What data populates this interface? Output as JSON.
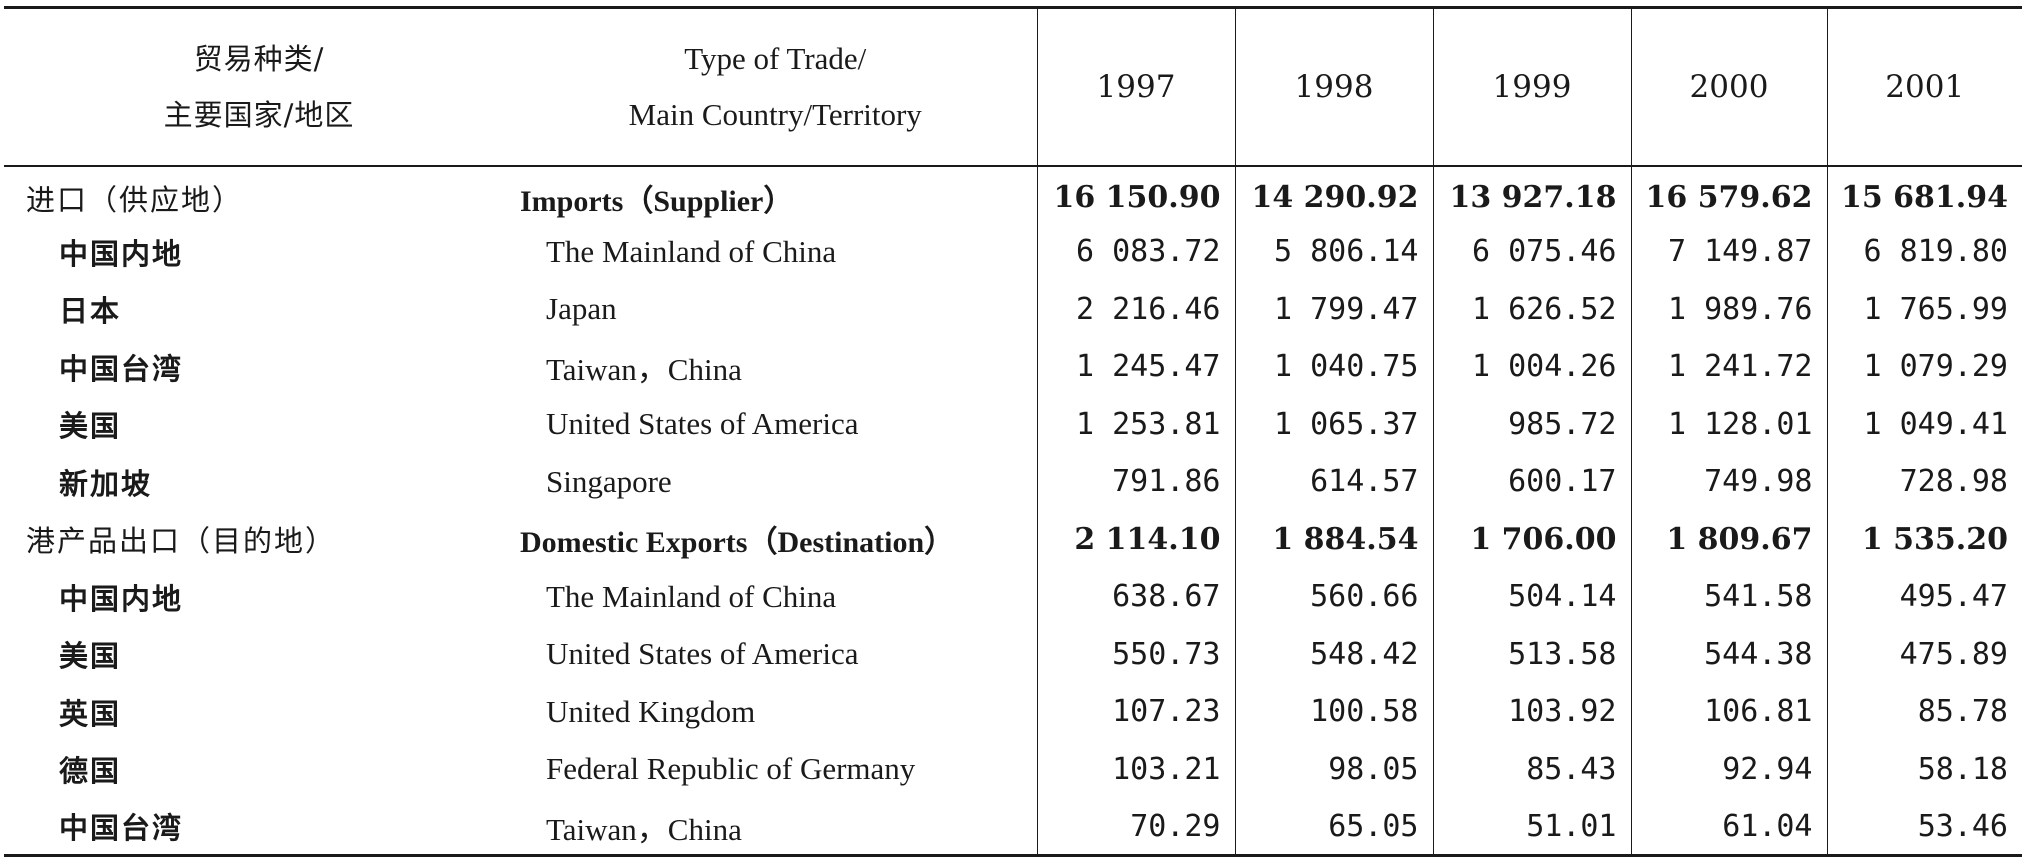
{
  "header": {
    "zh_line1": "贸易种类/",
    "zh_line2": "主要国家/地区",
    "en_line1": "Type of Trade/",
    "en_line2": "Main Country/Territory",
    "years": [
      "1997",
      "1998",
      "1999",
      "2000",
      "2001"
    ]
  },
  "rows": [
    {
      "zh": "进口（供应地）",
      "en": "Imports（Supplier）",
      "values": [
        "16 150.90",
        "14 290.92",
        "13 927.18",
        "16 579.62",
        "15 681.94"
      ]
    },
    {
      "zh": "中国内地",
      "en": "The Mainland of China",
      "values": [
        "6 083.72",
        "5 806.14",
        "6 075.46",
        "7 149.87",
        "6 819.80"
      ]
    },
    {
      "zh": "日本",
      "en": "Japan",
      "values": [
        "2 216.46",
        "1 799.47",
        "1 626.52",
        "1 989.76",
        "1 765.99"
      ]
    },
    {
      "zh": "中国台湾",
      "en": "Taiwan，China",
      "values": [
        "1 245.47",
        "1 040.75",
        "1 004.26",
        "1 241.72",
        "1 079.29"
      ]
    },
    {
      "zh": "美国",
      "en": "United States of America",
      "values": [
        "1 253.81",
        "1 065.37",
        "985.72",
        "1 128.01",
        "1 049.41"
      ]
    },
    {
      "zh": "新加坡",
      "en": "Singapore",
      "values": [
        "791.86",
        "614.57",
        "600.17",
        "749.98",
        "728.98"
      ]
    },
    {
      "zh": "港产品出口（目的地）",
      "en": "Domestic Exports（Destination）",
      "values": [
        "2 114.10",
        "1 884.54",
        "1 706.00",
        "1 809.67",
        "1 535.20"
      ]
    },
    {
      "zh": "中国内地",
      "en": "The Mainland of China",
      "values": [
        "638.67",
        "560.66",
        "504.14",
        "541.58",
        "495.47"
      ]
    },
    {
      "zh": "美国",
      "en": "United States of America",
      "values": [
        "550.73",
        "548.42",
        "513.58",
        "544.38",
        "475.89"
      ]
    },
    {
      "zh": "英国",
      "en": "United Kingdom",
      "values": [
        "107.23",
        "100.58",
        "103.92",
        "106.81",
        "85.78"
      ]
    },
    {
      "zh": "德国",
      "en": "Federal Republic of Germany",
      "values": [
        "103.21",
        "98.05",
        "85.43",
        "92.94",
        "58.18"
      ]
    },
    {
      "zh": "中国台湾",
      "en": "Taiwan，China",
      "values": [
        "70.29",
        "65.05",
        "51.01",
        "61.04",
        "53.46"
      ]
    }
  ]
}
